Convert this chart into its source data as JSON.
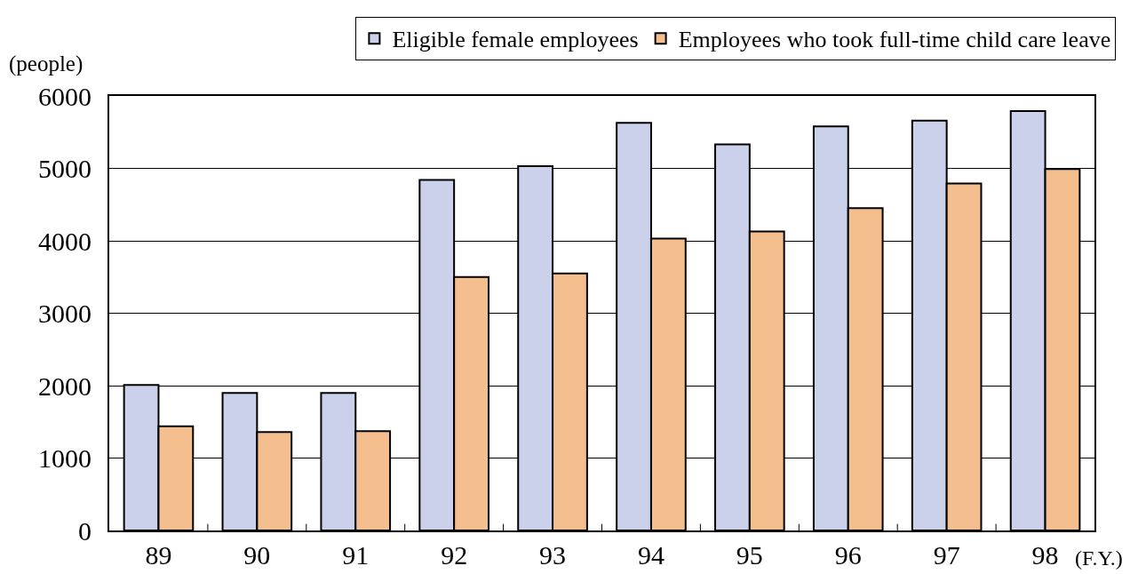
{
  "chart_data": {
    "type": "bar",
    "xlabel": "(F.Y.)",
    "ylabel": "(people)",
    "categories": [
      "89",
      "90",
      "91",
      "92",
      "93",
      "94",
      "95",
      "96",
      "97",
      "98"
    ],
    "series": [
      {
        "name": "Eligible female employees",
        "color": "#cbd1ea",
        "values": [
          2010,
          1900,
          1900,
          4840,
          5030,
          5630,
          5330,
          5580,
          5660,
          5790
        ]
      },
      {
        "name": "Employees who took full-time child care leave",
        "color": "#f5be8f",
        "values": [
          1440,
          1360,
          1370,
          3500,
          3550,
          4030,
          4130,
          4450,
          4790,
          4990
        ]
      }
    ],
    "ylim": [
      0,
      6000
    ],
    "yticks": [
      0,
      1000,
      2000,
      3000,
      4000,
      5000,
      6000
    ],
    "grid": "y",
    "legend": "top"
  }
}
